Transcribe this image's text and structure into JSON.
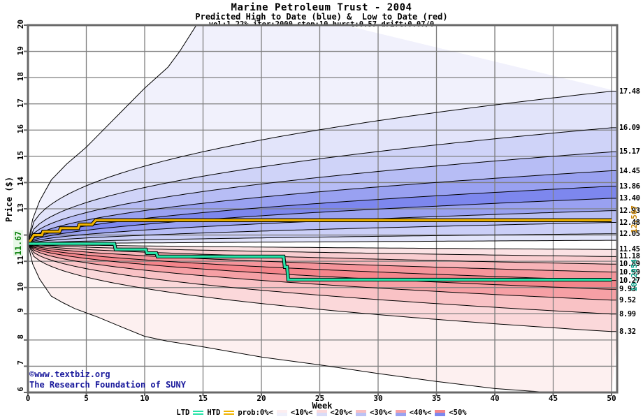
{
  "title": "Marine Petroleum Trust - 2004",
  "subtitle": "Predicted High to Date (blue) &  Low to Date (red)",
  "params": "vol:1.22% iter:2000 step:10 hurst:0.57 drift:0.07/0",
  "axes": {
    "y_label": "Price ($)",
    "x_label": "Week",
    "y_ticks": [
      20,
      19,
      18,
      17,
      16,
      15,
      14,
      13,
      12,
      11,
      10,
      9,
      8,
      7,
      6
    ],
    "x_ticks": [
      0,
      5,
      10,
      15,
      20,
      25,
      30,
      35,
      40,
      45,
      50
    ]
  },
  "annotations": {
    "start_price": "11.67",
    "htd_final": "12.567",
    "ltd_final": "10.2954"
  },
  "copyright": {
    "line1": "©www.textbiz.org",
    "line2": "The Research Foundation of SUNY"
  },
  "legend": {
    "ltd_label": "LTD",
    "htd_label": "HTD",
    "prob_label": "prob:0%<",
    "bands": [
      {
        "label": "<10%<",
        "red": "#fdeef0",
        "blue": "#eff0fb"
      },
      {
        "label": "<20%<",
        "red": "#fbd8db",
        "blue": "#d9dcf8"
      },
      {
        "label": "<30%<",
        "red": "#f9bfc3",
        "blue": "#bcc2f5"
      },
      {
        "label": "<40%<",
        "red": "#f7a2a7",
        "blue": "#9aa2f1"
      },
      {
        "label": "<50%",
        "red": "#f4868c",
        "blue": "#7d87ee"
      }
    ]
  },
  "colors": {
    "htd_line": "#f0b400",
    "ltd_line": "#27e3a7",
    "grid": "#7f7f7f",
    "frame": "#686868",
    "boundary": "#000000",
    "navy_text": "#18189b",
    "start_label": "#067d06",
    "htd_label": "#c8860b",
    "ltd_label": "#0ba189"
  },
  "chart_data": {
    "type": "area",
    "fan_type": "probability-fan-high-low",
    "x_range": [
      0,
      50
    ],
    "y_range": [
      6,
      20
    ],
    "start": {
      "week": 0,
      "price": 11.67
    },
    "high_fan": {
      "envelope_points": [
        [
          0,
          11.67
        ],
        [
          0.4,
          12.6
        ],
        [
          1,
          13.3
        ],
        [
          2,
          14.1
        ],
        [
          3.3,
          14.7
        ],
        [
          5,
          15.35
        ],
        [
          6,
          15.8
        ],
        [
          8,
          16.7
        ],
        [
          10,
          17.6
        ],
        [
          12,
          18.4
        ],
        [
          13,
          19.0
        ],
        [
          14,
          19.7
        ],
        [
          15,
          20.4
        ],
        [
          16,
          21.2
        ]
      ],
      "boundaries": [
        {
          "end": 17.48,
          "k": 0.42
        },
        {
          "end": 16.09,
          "k": 0.45
        },
        {
          "end": 15.17,
          "k": 0.47
        },
        {
          "end": 14.45,
          "k": 0.49
        },
        {
          "end": 13.86,
          "k": 0.51
        },
        {
          "end": 13.4,
          "k": 0.53
        },
        {
          "end": 12.93,
          "k": 0.55
        },
        {
          "end": 12.48,
          "k": 0.57
        },
        {
          "end": 12.05,
          "k": 0.59
        }
      ],
      "inner_edge": {
        "end": 11.8,
        "k": 0.9
      },
      "band_colors": [
        "#f1f1fc",
        "#e2e4fa",
        "#cfd3f8",
        "#b7bdf5",
        "#99a1f1",
        "#7d87ee",
        "#99a1f1",
        "#b7bdf5",
        "#cbcff7",
        "#e2e4fa"
      ]
    },
    "low_fan": {
      "boundaries": [
        {
          "end": 11.45,
          "k": 0.59
        },
        {
          "end": 11.18,
          "k": 0.57
        },
        {
          "end": 10.89,
          "k": 0.55
        },
        {
          "end": 10.59,
          "k": 0.53
        },
        {
          "end": 10.27,
          "k": 0.51
        },
        {
          "end": 9.93,
          "k": 0.49
        },
        {
          "end": 9.52,
          "k": 0.47
        },
        {
          "end": 8.99,
          "k": 0.45
        },
        {
          "end": 8.32,
          "k": 0.42
        }
      ],
      "envelope_points": [
        [
          0,
          11.67
        ],
        [
          0.4,
          10.9
        ],
        [
          1,
          10.32
        ],
        [
          2,
          9.67
        ],
        [
          3,
          9.42
        ],
        [
          4,
          9.2
        ],
        [
          6,
          8.87
        ],
        [
          8,
          8.5
        ],
        [
          10,
          8.14
        ],
        [
          12,
          7.95
        ],
        [
          15,
          7.74
        ],
        [
          20,
          7.35
        ],
        [
          25,
          7.05
        ],
        [
          30,
          6.72
        ],
        [
          35,
          6.42
        ],
        [
          40,
          6.15
        ],
        [
          44,
          6.02
        ],
        [
          47,
          5.97
        ],
        [
          50,
          5.92
        ]
      ],
      "band_colors": [
        "#fbe2e4",
        "#f9cdd0",
        "#f7b4b8",
        "#f5959b",
        "#f4858b",
        "#f6a0a5",
        "#f9c2c5",
        "#fbd8da",
        "#fdf0f0"
      ]
    },
    "htd_steps": [
      [
        0,
        11.67
      ],
      [
        0.2,
        11.78
      ],
      [
        0.5,
        12.0
      ],
      [
        1.2,
        12.0
      ],
      [
        1.3,
        12.13
      ],
      [
        2.7,
        12.13
      ],
      [
        2.8,
        12.26
      ],
      [
        4.3,
        12.26
      ],
      [
        4.4,
        12.4
      ],
      [
        5.5,
        12.4
      ],
      [
        5.8,
        12.567
      ],
      [
        50,
        12.567
      ]
    ],
    "ltd_steps": [
      [
        0,
        11.67
      ],
      [
        7.4,
        11.67
      ],
      [
        7.5,
        11.45
      ],
      [
        10.1,
        11.45
      ],
      [
        10.2,
        11.31
      ],
      [
        11.0,
        11.31
      ],
      [
        11.1,
        11.18
      ],
      [
        21.9,
        11.18
      ],
      [
        22.0,
        10.78
      ],
      [
        22.2,
        10.78
      ],
      [
        22.3,
        10.3
      ],
      [
        50,
        10.2954
      ]
    ]
  }
}
